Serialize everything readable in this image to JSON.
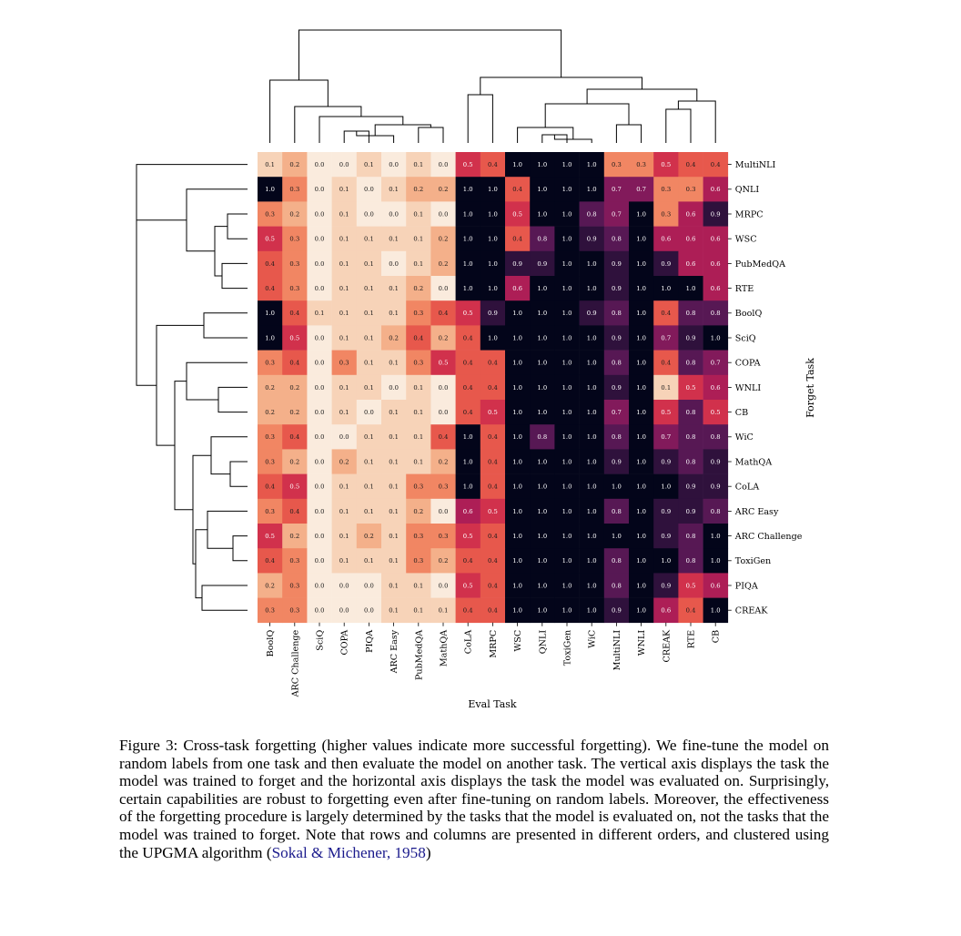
{
  "chart_data": {
    "type": "heatmap",
    "xlabel": "Eval Task",
    "ylabel": "Forget Task",
    "columns": [
      "BoolQ",
      "ARC Challenge",
      "SciQ",
      "COPA",
      "PIQA",
      "ARC Easy",
      "PubMedQA",
      "MathQA",
      "CoLA",
      "MRPC",
      "WSC",
      "QNLI",
      "ToxiGen",
      "WiC",
      "MultiNLI",
      "WNLI",
      "CREAK",
      "RTE",
      "CB"
    ],
    "rows": [
      "MultiNLI",
      "QNLI",
      "MRPC",
      "WSC",
      "PubMedQA",
      "RTE",
      "BoolQ",
      "SciQ",
      "COPA",
      "WNLI",
      "CB",
      "WiC",
      "MathQA",
      "CoLA",
      "ARC Easy",
      "ARC Challenge",
      "ToxiGen",
      "PIQA",
      "CREAK"
    ],
    "values": [
      [
        0.1,
        0.2,
        0.0,
        0.0,
        0.1,
        0.0,
        0.1,
        0.0,
        0.5,
        0.4,
        1.0,
        1.0,
        1.0,
        1.0,
        0.3,
        0.3,
        0.5,
        0.4,
        0.4
      ],
      [
        1.0,
        0.3,
        0.0,
        0.1,
        0.0,
        0.1,
        0.2,
        0.2,
        1.0,
        1.0,
        0.4,
        1.0,
        1.0,
        1.0,
        0.7,
        0.7,
        0.3,
        0.3,
        0.6
      ],
      [
        0.3,
        0.2,
        0.0,
        0.1,
        0.0,
        0.0,
        0.1,
        0.0,
        1.0,
        1.0,
        0.5,
        1.0,
        1.0,
        0.8,
        0.7,
        1.0,
        0.3,
        0.6,
        0.9
      ],
      [
        0.5,
        0.3,
        0.0,
        0.1,
        0.1,
        0.1,
        0.1,
        0.2,
        1.0,
        1.0,
        0.4,
        0.8,
        1.0,
        0.9,
        0.8,
        1.0,
        0.6,
        0.6,
        0.6
      ],
      [
        0.4,
        0.3,
        0.0,
        0.1,
        0.1,
        0.0,
        0.1,
        0.2,
        1.0,
        1.0,
        0.9,
        0.9,
        1.0,
        1.0,
        0.9,
        1.0,
        0.9,
        0.6,
        0.6
      ],
      [
        0.4,
        0.3,
        0.0,
        0.1,
        0.1,
        0.1,
        0.2,
        0.0,
        1.0,
        1.0,
        0.6,
        1.0,
        1.0,
        1.0,
        0.9,
        1.0,
        1.0,
        1.0,
        0.6
      ],
      [
        1.0,
        0.4,
        0.1,
        0.1,
        0.1,
        0.1,
        0.3,
        0.4,
        0.5,
        0.9,
        1.0,
        1.0,
        1.0,
        0.9,
        0.8,
        1.0,
        0.4,
        0.8,
        0.8
      ],
      [
        1.0,
        0.5,
        0.0,
        0.1,
        0.1,
        0.2,
        0.4,
        0.2,
        0.4,
        1.0,
        1.0,
        1.0,
        1.0,
        1.0,
        0.9,
        1.0,
        0.7,
        0.9,
        1.0
      ],
      [
        0.3,
        0.4,
        0.0,
        0.3,
        0.1,
        0.1,
        0.3,
        0.5,
        0.4,
        0.4,
        1.0,
        1.0,
        1.0,
        1.0,
        0.8,
        1.0,
        0.4,
        0.8,
        0.7
      ],
      [
        0.2,
        0.2,
        0.0,
        0.1,
        0.1,
        0.0,
        0.1,
        0.0,
        0.4,
        0.4,
        1.0,
        1.0,
        1.0,
        1.0,
        0.9,
        1.0,
        0.1,
        0.5,
        0.6
      ],
      [
        0.2,
        0.2,
        0.0,
        0.1,
        0.0,
        0.1,
        0.1,
        0.0,
        0.4,
        0.5,
        1.0,
        1.0,
        1.0,
        1.0,
        0.7,
        1.0,
        0.5,
        0.8,
        0.5
      ],
      [
        0.3,
        0.4,
        0.0,
        0.0,
        0.1,
        0.1,
        0.1,
        0.4,
        1.0,
        0.4,
        1.0,
        0.8,
        1.0,
        1.0,
        0.8,
        1.0,
        0.7,
        0.8,
        0.8
      ],
      [
        0.3,
        0.2,
        0.0,
        0.2,
        0.1,
        0.1,
        0.1,
        0.2,
        1.0,
        0.4,
        1.0,
        1.0,
        1.0,
        1.0,
        0.9,
        1.0,
        0.9,
        0.8,
        0.9
      ],
      [
        0.4,
        0.5,
        0.0,
        0.1,
        0.1,
        0.1,
        0.3,
        0.3,
        1.0,
        0.4,
        1.0,
        1.0,
        1.0,
        1.0,
        1.0,
        1.0,
        1.0,
        0.9,
        0.9
      ],
      [
        0.3,
        0.4,
        0.0,
        0.1,
        0.1,
        0.1,
        0.2,
        0.0,
        0.6,
        0.5,
        1.0,
        1.0,
        1.0,
        1.0,
        0.8,
        1.0,
        0.9,
        0.9,
        0.8
      ],
      [
        0.5,
        0.2,
        0.0,
        0.1,
        0.2,
        0.1,
        0.3,
        0.3,
        0.5,
        0.4,
        1.0,
        1.0,
        1.0,
        1.0,
        1.0,
        1.0,
        0.9,
        0.8,
        1.0
      ],
      [
        0.4,
        0.3,
        0.0,
        0.1,
        0.1,
        0.1,
        0.3,
        0.2,
        0.4,
        0.4,
        1.0,
        1.0,
        1.0,
        1.0,
        0.8,
        1.0,
        1.0,
        0.8,
        1.0
      ],
      [
        0.2,
        0.3,
        0.0,
        0.0,
        0.0,
        0.1,
        0.1,
        0.0,
        0.5,
        0.4,
        1.0,
        1.0,
        1.0,
        1.0,
        0.8,
        1.0,
        0.9,
        0.5,
        0.6
      ],
      [
        0.3,
        0.3,
        0.0,
        0.0,
        0.0,
        0.1,
        0.1,
        0.1,
        0.4,
        0.4,
        1.0,
        1.0,
        1.0,
        1.0,
        0.9,
        1.0,
        0.6,
        0.4,
        1.0
      ]
    ],
    "vmin": 0.0,
    "vmax": 1.0,
    "colormap": "rocket_r",
    "annotations_format": "0.0",
    "clustering": "UPGMA dendrograms on rows and columns"
  },
  "caption": {
    "text": "Figure 3: Cross-task forgetting (higher values indicate more successful forgetting). We fine-tune the model on random labels from one task and then evaluate the model on another task. The vertical axis displays the task the model was trained to forget and the horizontal axis displays the task the model was evaluated on. Surprisingly, certain capabilities are robust to forgetting even after fine-tuning on random labels. Moreover, the effectiveness of the forgetting procedure is largely determined by the tasks that the model is evaluated on, not the tasks that the model was trained to forget. Note that rows and columns are presented in different orders, and clustered using the UPGMA algorithm (",
    "citation": "Sokal & Michener, 1958",
    "closing": ")"
  }
}
